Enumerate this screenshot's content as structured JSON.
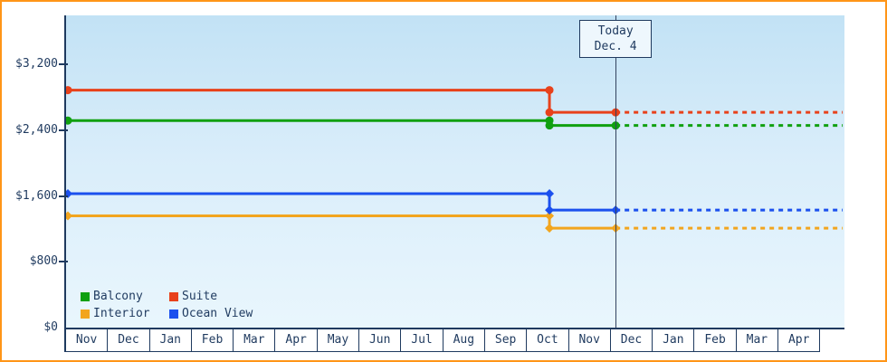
{
  "frame": {
    "border_color": "#ff9518",
    "axis_color": "#1f3a5f"
  },
  "chart_data": {
    "type": "line",
    "title": "",
    "xlabel": "",
    "ylabel": "",
    "ylim": [
      0,
      3800
    ],
    "grid": false,
    "legend_position": "bottom-left",
    "y_ticks": [
      {
        "label": "$3,200",
        "value": 3200
      },
      {
        "label": "$2,400",
        "value": 2400
      },
      {
        "label": "$1,600",
        "value": 1600
      },
      {
        "label": "$800",
        "value": 800
      },
      {
        "label": "$0",
        "value": 0
      }
    ],
    "months": [
      "Nov",
      "Dec",
      "Jan",
      "Feb",
      "Mar",
      "Apr",
      "May",
      "Jun",
      "Jul",
      "Aug",
      "Sep",
      "Oct",
      "Nov",
      "Dec",
      "Jan",
      "Feb",
      "Mar",
      "Apr"
    ],
    "series": [
      {
        "name": "Balcony",
        "color": "#10a010",
        "marker": "circle",
        "value_before": 2520,
        "value_after": 2460
      },
      {
        "name": "Suite",
        "color": "#e8411b",
        "marker": "circle",
        "value_before": 2890,
        "value_after": 2620
      },
      {
        "name": "Interior",
        "color": "#f2a51e",
        "marker": "diamond",
        "value_before": 1360,
        "value_after": 1210
      },
      {
        "name": "Ocean View",
        "color": "#1b50ee",
        "marker": "diamond",
        "value_before": 1630,
        "value_after": 1430
      }
    ],
    "price_drop_month": "Oct",
    "today": {
      "title": "Today",
      "date": "Dec. 4"
    },
    "layout": {
      "change_x_frac": 0.621,
      "today_x_frac": 0.706,
      "solid_before_today_dashed_after": true
    }
  }
}
